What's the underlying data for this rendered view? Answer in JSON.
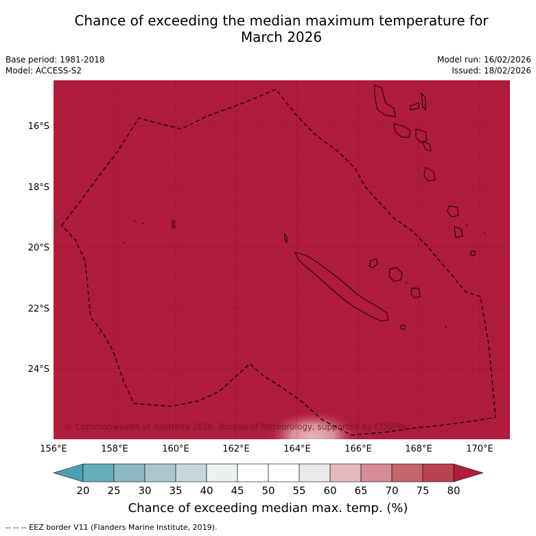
{
  "title_line1": "Chance of exceeding the median maximum temperature for",
  "title_line2": "March 2026",
  "base_period": "Base period: 1981-2018",
  "model": "Model: ACCESS-S2",
  "model_run": "Model run: 16/02/2026",
  "issued": "Issued: 18/02/2026",
  "map": {
    "fill_color": "#b01c3b",
    "lat_labels": [
      "16°S",
      "18°S",
      "20°S",
      "22°S",
      "24°S"
    ],
    "lon_labels": [
      "156°E",
      "158°E",
      "160°E",
      "162°E",
      "164°E",
      "166°E",
      "168°E",
      "170°E"
    ],
    "copyright": "© Commonwealth of Australia 2026, Bureau of Meteorology, supported by COSPPac"
  },
  "colorbar": {
    "ticks": [
      "20",
      "25",
      "30",
      "35",
      "40",
      "45",
      "50",
      "55",
      "60",
      "65",
      "70",
      "75",
      "80"
    ],
    "colors": [
      "#68adbb",
      "#8eb9c3",
      "#a9c7cc",
      "#c8d8dc",
      "#ebf0f1",
      "#ffffff",
      "#ffffff",
      "#e9e9e9",
      "#e2b8be",
      "#d68d97",
      "#c6646f",
      "#b84452"
    ],
    "low_color": "#4aa0b0",
    "high_color": "#b01c3b",
    "label": "Chance of exceeding median max. temp. (%)"
  },
  "footer": "-- -- -- EEZ border V11 (Flanders Marine Institute, 2019)."
}
